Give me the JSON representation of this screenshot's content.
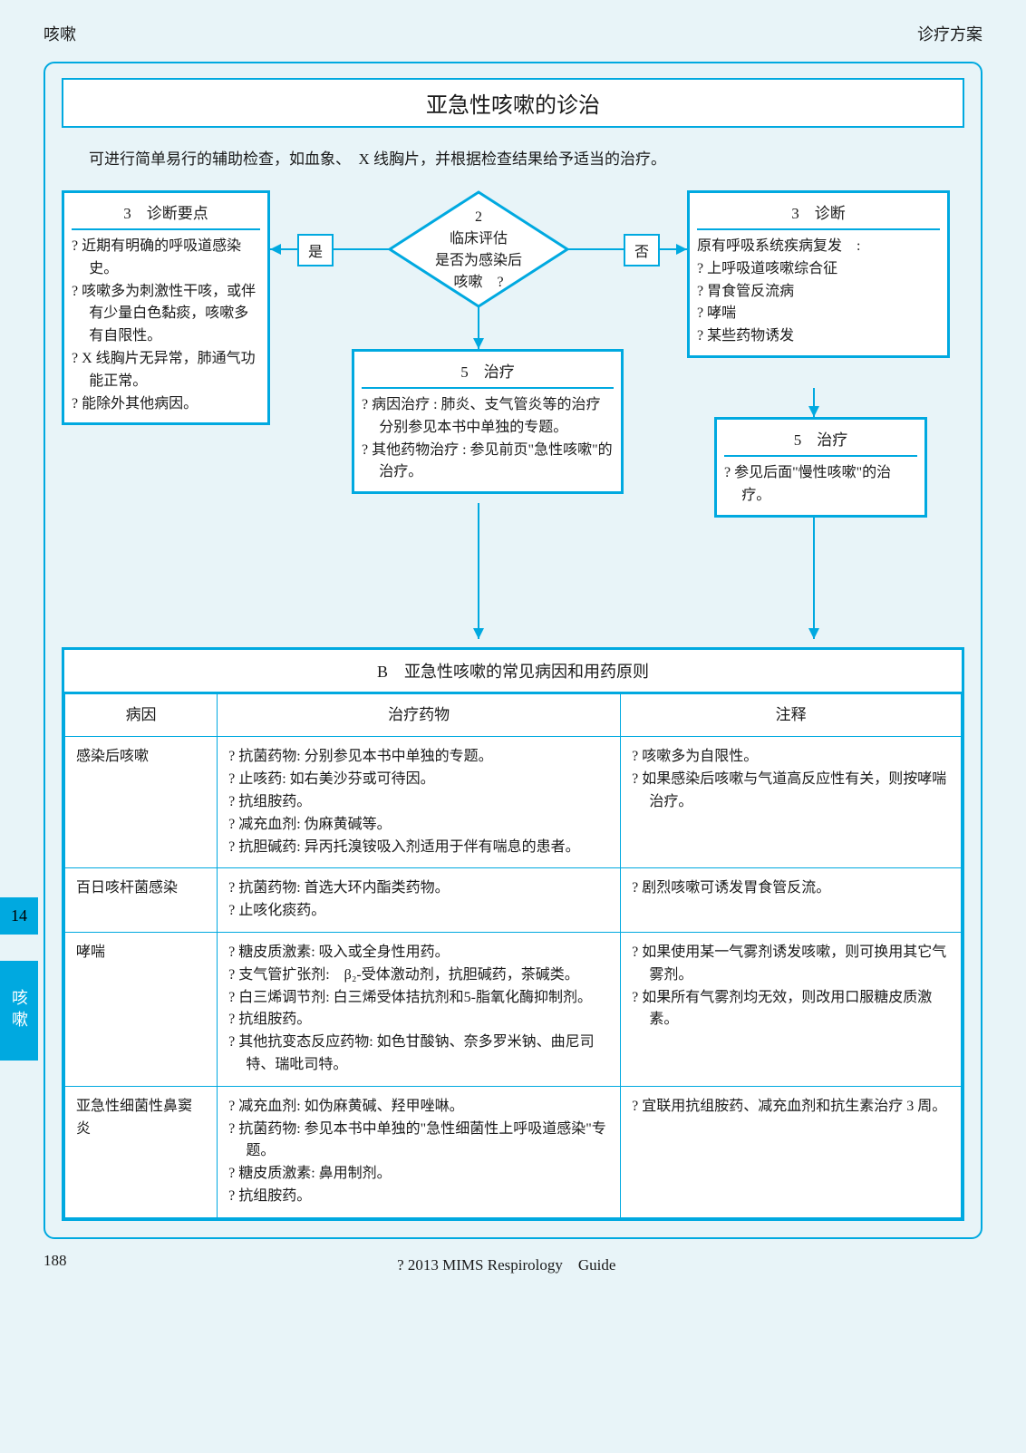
{
  "header": {
    "left": "咳嗽",
    "right": "诊疗方案"
  },
  "title": "亚急性咳嗽的诊治",
  "intro": "可进行简单易行的辅助检查，如血象、　X 线胸片，并根据检查结果给予适当的治疗。",
  "flow": {
    "diamond": {
      "num": "2",
      "l1": "临床评估",
      "l2": "是否为感染后",
      "l3": "咳嗽　?"
    },
    "yes": "是",
    "no": "否",
    "left_box": {
      "head_num": "3",
      "head_txt": "诊断要点",
      "items": [
        "? 近期有明确的呼吸道感染史。",
        "? 咳嗽多为刺激性干咳，或伴有少量白色黏痰，咳嗽多有自限性。",
        "? X 线胸片无异常，肺通气功能正常。",
        "? 能除外其他病因。"
      ]
    },
    "mid_box": {
      "head_num": "5",
      "head_txt": "治疗",
      "items": [
        "? 病因治疗 : 肺炎、支气管炎等的治疗分别参见本书中单独的专题。",
        "? 其他药物治疗 : 参见前页\"急性咳嗽\"的治疗。"
      ]
    },
    "right_box": {
      "head_num": "3",
      "head_txt": "诊断",
      "lead": "原有呼吸系统疾病复发　:",
      "items": [
        "? 上呼吸道咳嗽综合征",
        "? 胃食管反流病",
        "? 哮喘",
        "? 某些药物诱发"
      ]
    },
    "right_box2": {
      "head_num": "5",
      "head_txt": "治疗",
      "items": [
        "? 参见后面\"慢性咳嗽\"的治疗。"
      ]
    }
  },
  "table": {
    "title_prefix": "B",
    "title": "亚急性咳嗽的常见病因和用药原则",
    "cols": [
      "病因",
      "治疗药物",
      "注释"
    ],
    "rows": [
      {
        "c0": "感染后咳嗽",
        "c1": [
          "? 抗菌药物: 分别参见本书中单独的专题。",
          "? 止咳药: 如右美沙芬或可待因。",
          "? 抗组胺药。",
          "? 减充血剂: 伪麻黄碱等。",
          "? 抗胆碱药: 异丙托溴铵吸入剂适用于伴有喘息的患者。"
        ],
        "c2": [
          "? 咳嗽多为自限性。",
          "? 如果感染后咳嗽与气道高反应性有关，则按哮喘治疗。"
        ]
      },
      {
        "c0": "百日咳杆菌感染",
        "c1": [
          "? 抗菌药物: 首选大环内酯类药物。",
          "? 止咳化痰药。"
        ],
        "c2": [
          "? 剧烈咳嗽可诱发胃食管反流。"
        ]
      },
      {
        "c0": "哮喘",
        "c1": [
          "? 糖皮质激素: 吸入或全身性用药。",
          "? 支气管扩张剂:　β₂-受体激动剂，抗胆碱药，茶碱类。",
          "? 白三烯调节剂: 白三烯受体拮抗剂和5-脂氧化酶抑制剂。",
          "? 抗组胺药。",
          "? 其他抗变态反应药物: 如色甘酸钠、奈多罗米钠、曲尼司特、瑞吡司特。"
        ],
        "c2": [
          "? 如果使用某一气雾剂诱发咳嗽，则可换用其它气雾剂。",
          "? 如果所有气雾剂均无效，则改用口服糖皮质激素。"
        ]
      },
      {
        "c0": "亚急性细菌性鼻窦炎",
        "c1": [
          "? 减充血剂: 如伪麻黄碱、羟甲唑啉。",
          "? 抗菌药物: 参见本书中单独的\"急性细菌性上呼吸道感染\"专题。",
          "? 糖皮质激素: 鼻用制剂。",
          "? 抗组胺药。"
        ],
        "c2": [
          "? 宜联用抗组胺药、减充血剂和抗生素治疗 3 周。"
        ]
      }
    ]
  },
  "side": {
    "num": "14",
    "txt": "咳嗽"
  },
  "footer": {
    "page": "188",
    "copyright": "? 2013 MIMS Respirology　Guide"
  },
  "colors": {
    "accent": "#00a9e0",
    "bg": "#e8f4f8"
  }
}
